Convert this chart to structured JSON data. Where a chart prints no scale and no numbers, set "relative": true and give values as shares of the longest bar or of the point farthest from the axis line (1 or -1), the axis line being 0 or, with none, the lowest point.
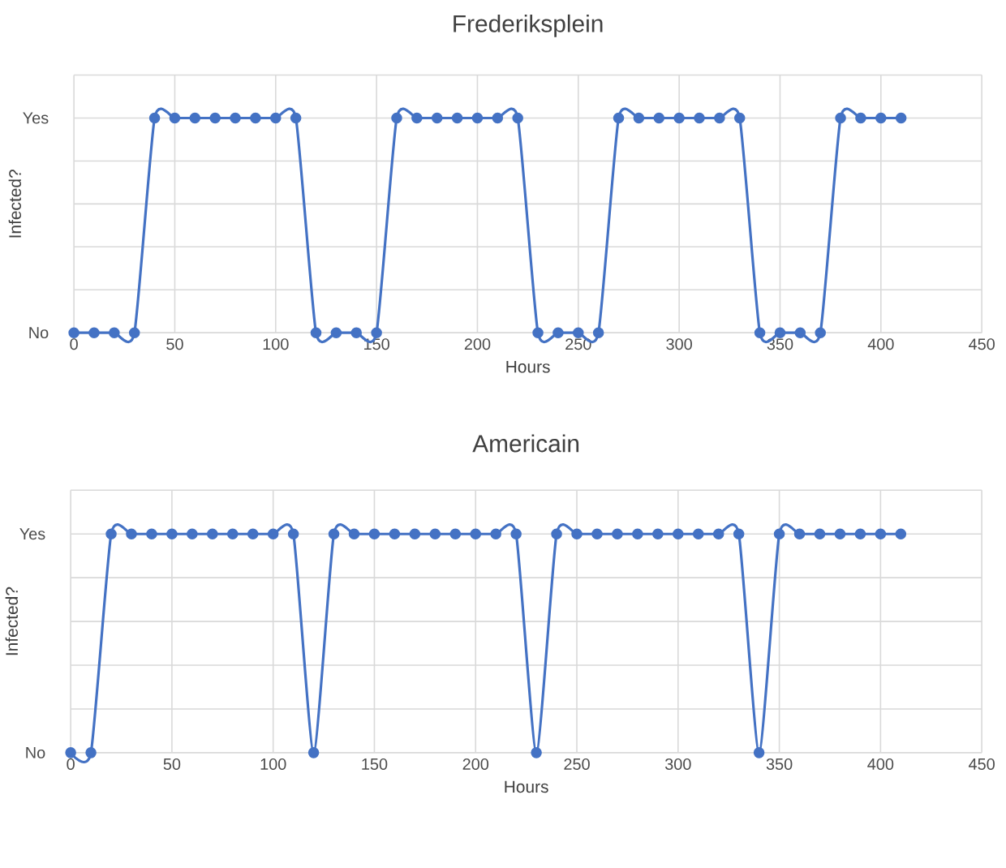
{
  "chart_data": [
    {
      "type": "line",
      "title": "Frederiksplein",
      "xlabel": "Hours",
      "ylabel": "Infected?",
      "color": "#4472c4",
      "marker": "circle",
      "line_style": "solid",
      "grid": true,
      "x": [
        0,
        10,
        20,
        30,
        40,
        50,
        60,
        70,
        80,
        90,
        100,
        110,
        120,
        130,
        140,
        150,
        160,
        170,
        180,
        190,
        200,
        210,
        220,
        230,
        240,
        250,
        260,
        270,
        280,
        290,
        300,
        310,
        320,
        330,
        340,
        350,
        360,
        370,
        380,
        390,
        400,
        410
      ],
      "values": [
        0,
        0,
        0,
        0,
        1,
        1,
        1,
        1,
        1,
        1,
        1,
        1,
        0,
        0,
        0,
        0,
        1,
        1,
        1,
        1,
        1,
        1,
        1,
        0,
        0,
        0,
        0,
        1,
        1,
        1,
        1,
        1,
        1,
        1,
        0,
        0,
        0,
        0,
        1,
        1,
        1,
        1
      ],
      "xlim": [
        0,
        450
      ],
      "xticks": [
        0,
        50,
        100,
        150,
        200,
        250,
        300,
        350,
        400,
        450
      ],
      "relative": true,
      "annotations": [
        "Yes",
        "No"
      ]
    },
    {
      "type": "line",
      "title": "Americain",
      "xlabel": "Hours",
      "ylabel": "Infected?",
      "color": "#4472c4",
      "marker": "circle",
      "line_style": "solid",
      "grid": true,
      "x": [
        0,
        10,
        20,
        30,
        40,
        50,
        60,
        70,
        80,
        90,
        100,
        110,
        120,
        130,
        140,
        150,
        160,
        170,
        180,
        190,
        200,
        210,
        220,
        230,
        240,
        250,
        260,
        270,
        280,
        290,
        300,
        310,
        320,
        330,
        340,
        350,
        360,
        370,
        380,
        390,
        400,
        410
      ],
      "values": [
        0,
        0,
        1,
        1,
        1,
        1,
        1,
        1,
        1,
        1,
        1,
        1,
        0,
        1,
        1,
        1,
        1,
        1,
        1,
        1,
        1,
        1,
        1,
        0,
        1,
        1,
        1,
        1,
        1,
        1,
        1,
        1,
        1,
        1,
        0,
        1,
        1,
        1,
        1,
        1,
        1,
        1
      ],
      "xlim": [
        0,
        450
      ],
      "xticks": [
        0,
        50,
        100,
        150,
        200,
        250,
        300,
        350,
        400,
        450
      ],
      "relative": true,
      "annotations": [
        "Yes",
        "No"
      ]
    }
  ]
}
